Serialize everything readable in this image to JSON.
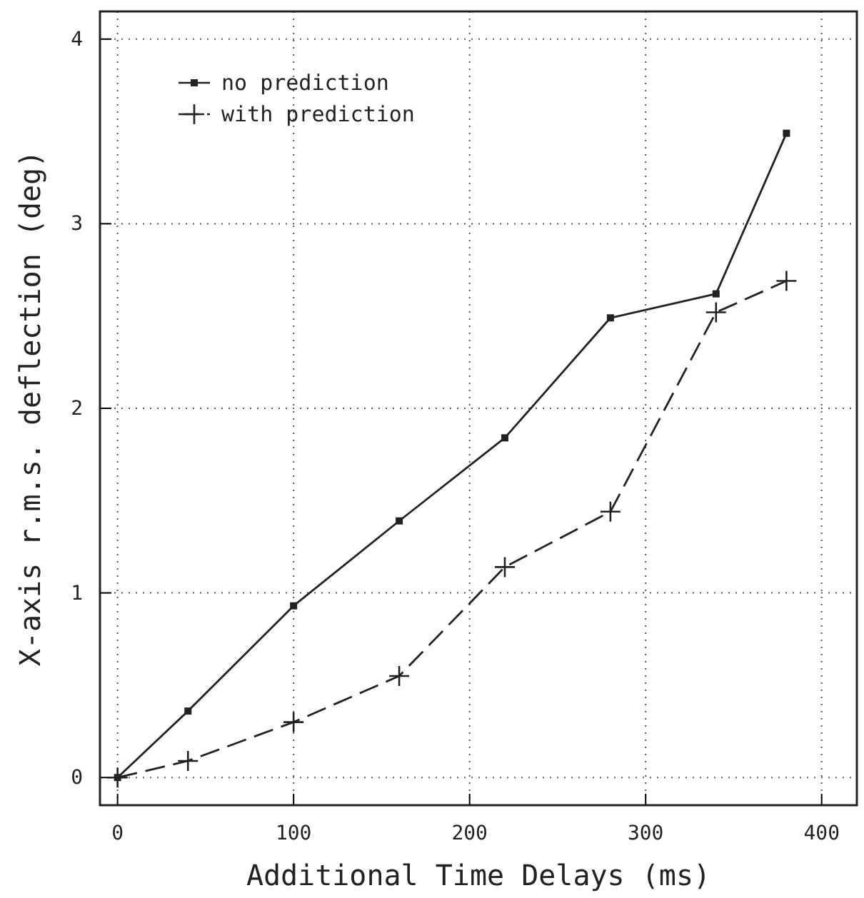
{
  "chart_data": {
    "type": "line",
    "xlabel": "Additional Time Delays (ms)",
    "ylabel": "X-axis r.m.s. deflection (deg)",
    "x": [
      0,
      40,
      100,
      160,
      220,
      280,
      340,
      380
    ],
    "series": [
      {
        "name": "no prediction",
        "color": "#222222",
        "marker": "square",
        "line_style": "solid",
        "values": [
          0,
          0.36,
          0.93,
          1.39,
          1.84,
          2.49,
          2.62,
          3.49
        ]
      },
      {
        "name": "with prediction",
        "color": "#222222",
        "marker": "cross",
        "line_style": "dashed",
        "values": [
          0,
          0.09,
          0.3,
          0.55,
          1.14,
          1.44,
          2.52,
          2.69
        ]
      }
    ],
    "xlim": [
      -10,
      420
    ],
    "xticks": [
      0,
      100,
      200,
      300,
      400
    ],
    "ylim": [
      -0.15,
      4.15
    ],
    "yticks": [
      0,
      1,
      2,
      3,
      4
    ],
    "grid": true,
    "legend": "top left"
  }
}
